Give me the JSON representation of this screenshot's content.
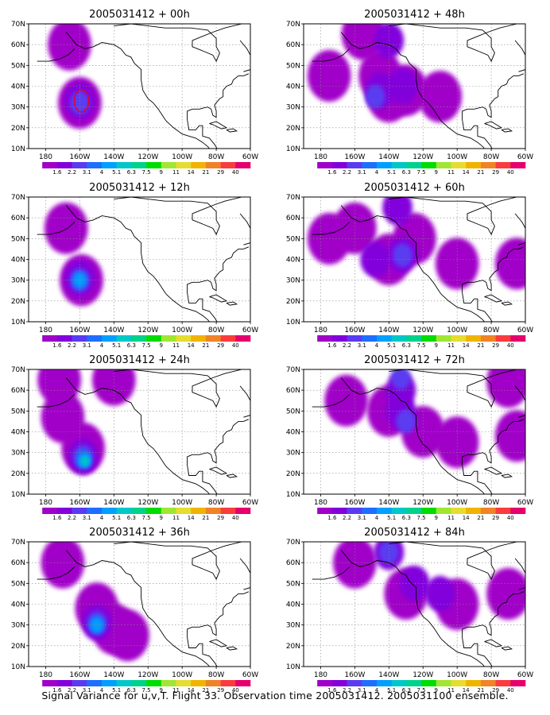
{
  "figure": {
    "caption": "Signal Variance for u,v,T. Flight 33. Observation time 2005031412. 2005031100 ensemble."
  },
  "colorbar": {
    "labels": [
      "1.6",
      "2.2",
      "3.1",
      "4",
      "5.1",
      "6.3",
      "7.5",
      "9",
      "11",
      "14",
      "21",
      "29",
      "40"
    ],
    "colors": [
      "#a000c8",
      "#8200dc",
      "#5a3cf0",
      "#1e6eff",
      "#00a0ff",
      "#00c8c8",
      "#00d28c",
      "#00dc00",
      "#a0e632",
      "#e6dc32",
      "#f0b400",
      "#f08228",
      "#fa3c3c",
      "#e6006e"
    ]
  },
  "axes": {
    "lat_labels": [
      "70N",
      "60N",
      "50N",
      "40N",
      "30N",
      "20N",
      "10N"
    ],
    "lon_labels": [
      "180",
      "160W",
      "140W",
      "120W",
      "100W",
      "80W",
      "60W"
    ]
  },
  "chart_data": [
    {
      "type": "heatmap",
      "title": "2005031412 + 00h",
      "lead": "00h",
      "lon_range": [
        -190,
        -60
      ],
      "lat_range": [
        10,
        70
      ],
      "blobs": [
        {
          "lon": -166,
          "lat": 60,
          "level": 0
        },
        {
          "lon": -160,
          "lat": 32,
          "level": 0
        },
        {
          "lon": -160,
          "lat": 33,
          "level": 1
        },
        {
          "lon": -160,
          "lat": 32,
          "level": 2
        }
      ],
      "contour": {
        "lon": -159,
        "lat": 33
      }
    },
    {
      "type": "heatmap",
      "title": "2005031412 + 48h",
      "lead": "48h",
      "lon_range": [
        -190,
        -60
      ],
      "lat_range": [
        10,
        70
      ],
      "blobs": [
        {
          "lon": -155,
          "lat": 65,
          "level": 0
        },
        {
          "lon": -145,
          "lat": 45,
          "level": 0
        },
        {
          "lon": -140,
          "lat": 35,
          "level": 0
        },
        {
          "lon": -130,
          "lat": 38,
          "level": 0
        },
        {
          "lon": -110,
          "lat": 35,
          "level": 0
        },
        {
          "lon": -175,
          "lat": 45,
          "level": 0
        },
        {
          "lon": -145,
          "lat": 38,
          "level": 1
        },
        {
          "lon": -148,
          "lat": 35,
          "level": 2
        },
        {
          "lon": -132,
          "lat": 40,
          "level": 1
        },
        {
          "lon": -140,
          "lat": 62,
          "level": 1
        }
      ]
    },
    {
      "type": "heatmap",
      "title": "2005031412 + 12h",
      "lead": "12h",
      "lon_range": [
        -190,
        -60
      ],
      "lat_range": [
        10,
        70
      ],
      "blobs": [
        {
          "lon": -168,
          "lat": 55,
          "level": 0
        },
        {
          "lon": -159,
          "lat": 30,
          "level": 0
        },
        {
          "lon": -160,
          "lat": 31,
          "level": 1
        },
        {
          "lon": -160,
          "lat": 30,
          "level": 2
        },
        {
          "lon": -160,
          "lat": 30,
          "level": 3
        },
        {
          "lon": -160,
          "lat": 30,
          "level": 4
        }
      ]
    },
    {
      "type": "heatmap",
      "title": "2005031412 + 60h",
      "lead": "60h",
      "lon_range": [
        -190,
        -60
      ],
      "lat_range": [
        10,
        70
      ],
      "blobs": [
        {
          "lon": -160,
          "lat": 55,
          "level": 0
        },
        {
          "lon": -140,
          "lat": 40,
          "level": 0
        },
        {
          "lon": -125,
          "lat": 50,
          "level": 0
        },
        {
          "lon": -100,
          "lat": 38,
          "level": 0
        },
        {
          "lon": -65,
          "lat": 38,
          "level": 0
        },
        {
          "lon": -175,
          "lat": 50,
          "level": 0
        },
        {
          "lon": -135,
          "lat": 65,
          "level": 1
        },
        {
          "lon": -132,
          "lat": 42,
          "level": 1
        },
        {
          "lon": -132,
          "lat": 42,
          "level": 2
        },
        {
          "lon": -148,
          "lat": 40,
          "level": 1
        }
      ]
    },
    {
      "type": "heatmap",
      "title": "2005031412 + 24h",
      "lead": "24h",
      "lon_range": [
        -190,
        -60
      ],
      "lat_range": [
        10,
        70
      ],
      "blobs": [
        {
          "lon": -170,
          "lat": 47,
          "level": 0
        },
        {
          "lon": -158,
          "lat": 32,
          "level": 0
        },
        {
          "lon": -172,
          "lat": 65,
          "level": 0
        },
        {
          "lon": -140,
          "lat": 65,
          "level": 0
        },
        {
          "lon": -158,
          "lat": 28,
          "level": 1
        },
        {
          "lon": -158,
          "lat": 28,
          "level": 2
        },
        {
          "lon": -158,
          "lat": 27,
          "level": 3
        },
        {
          "lon": -157,
          "lat": 26,
          "level": 4
        },
        {
          "lon": -157,
          "lat": 26,
          "level": 5
        }
      ]
    },
    {
      "type": "heatmap",
      "title": "2005031412 + 72h",
      "lead": "72h",
      "lon_range": [
        -190,
        -60
      ],
      "lat_range": [
        10,
        70
      ],
      "blobs": [
        {
          "lon": -165,
          "lat": 55,
          "level": 0
        },
        {
          "lon": -140,
          "lat": 50,
          "level": 0
        },
        {
          "lon": -120,
          "lat": 40,
          "level": 0
        },
        {
          "lon": -100,
          "lat": 35,
          "level": 0
        },
        {
          "lon": -70,
          "lat": 64,
          "level": 0
        },
        {
          "lon": -65,
          "lat": 38,
          "level": 0
        },
        {
          "lon": -133,
          "lat": 60,
          "level": 1
        },
        {
          "lon": -133,
          "lat": 50,
          "level": 1
        },
        {
          "lon": -133,
          "lat": 66,
          "level": 2
        },
        {
          "lon": -130,
          "lat": 45,
          "level": 2
        }
      ]
    },
    {
      "type": "heatmap",
      "title": "2005031412 + 36h",
      "lead": "36h",
      "lon_range": [
        -190,
        -60
      ],
      "lat_range": [
        10,
        70
      ],
      "blobs": [
        {
          "lon": -170,
          "lat": 60,
          "level": 0
        },
        {
          "lon": -150,
          "lat": 38,
          "level": 0
        },
        {
          "lon": -140,
          "lat": 28,
          "level": 0
        },
        {
          "lon": -132,
          "lat": 25,
          "level": 0
        },
        {
          "lon": -150,
          "lat": 31,
          "level": 1
        },
        {
          "lon": -150,
          "lat": 31,
          "level": 2
        },
        {
          "lon": -150,
          "lat": 30,
          "level": 3
        },
        {
          "lon": -150,
          "lat": 30,
          "level": 4
        }
      ]
    },
    {
      "type": "heatmap",
      "title": "2005031412 + 84h",
      "lead": "84h",
      "lon_range": [
        -190,
        -60
      ],
      "lat_range": [
        10,
        70
      ],
      "blobs": [
        {
          "lon": -160,
          "lat": 60,
          "level": 0
        },
        {
          "lon": -130,
          "lat": 45,
          "level": 0
        },
        {
          "lon": -100,
          "lat": 40,
          "level": 0
        },
        {
          "lon": -70,
          "lat": 45,
          "level": 0
        },
        {
          "lon": -140,
          "lat": 65,
          "level": 1
        },
        {
          "lon": -140,
          "lat": 65,
          "level": 2
        },
        {
          "lon": -125,
          "lat": 50,
          "level": 1
        },
        {
          "lon": -110,
          "lat": 45,
          "level": 1
        }
      ]
    }
  ]
}
